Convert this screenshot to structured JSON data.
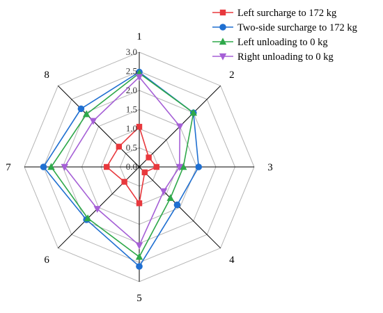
{
  "chart_data": {
    "type": "radar",
    "categories": [
      "1",
      "2",
      "3",
      "4",
      "5",
      "6",
      "7",
      "8"
    ],
    "r_ticks": [
      "0.0",
      "0.5",
      "1.0",
      "1.5",
      "2.0",
      "2.5",
      "3.0"
    ],
    "rlim": [
      0,
      3.0
    ],
    "grid": true,
    "legend_position": "top-right",
    "series": [
      {
        "name": "Left surcharge to 172 kg",
        "color": "#e8383d",
        "marker": "square",
        "values": [
          1.05,
          0.35,
          0.45,
          0.2,
          0.95,
          0.55,
          0.85,
          0.75
        ]
      },
      {
        "name": "Two-side surcharge to 172 kg",
        "color": "#1f6fd1",
        "marker": "circle",
        "values": [
          2.48,
          2.0,
          1.55,
          1.4,
          2.6,
          1.95,
          2.5,
          2.15
        ]
      },
      {
        "name": "Left unloading to 0 kg",
        "color": "#2ea84a",
        "marker": "triangle-up",
        "values": [
          2.45,
          2.0,
          1.15,
          1.15,
          2.35,
          1.9,
          2.3,
          1.95
        ]
      },
      {
        "name": "Right unloading to 0 kg",
        "color": "#a55fd6",
        "marker": "triangle-down",
        "values": [
          2.35,
          1.5,
          1.05,
          0.9,
          2.05,
          1.55,
          1.95,
          1.7
        ]
      }
    ]
  }
}
